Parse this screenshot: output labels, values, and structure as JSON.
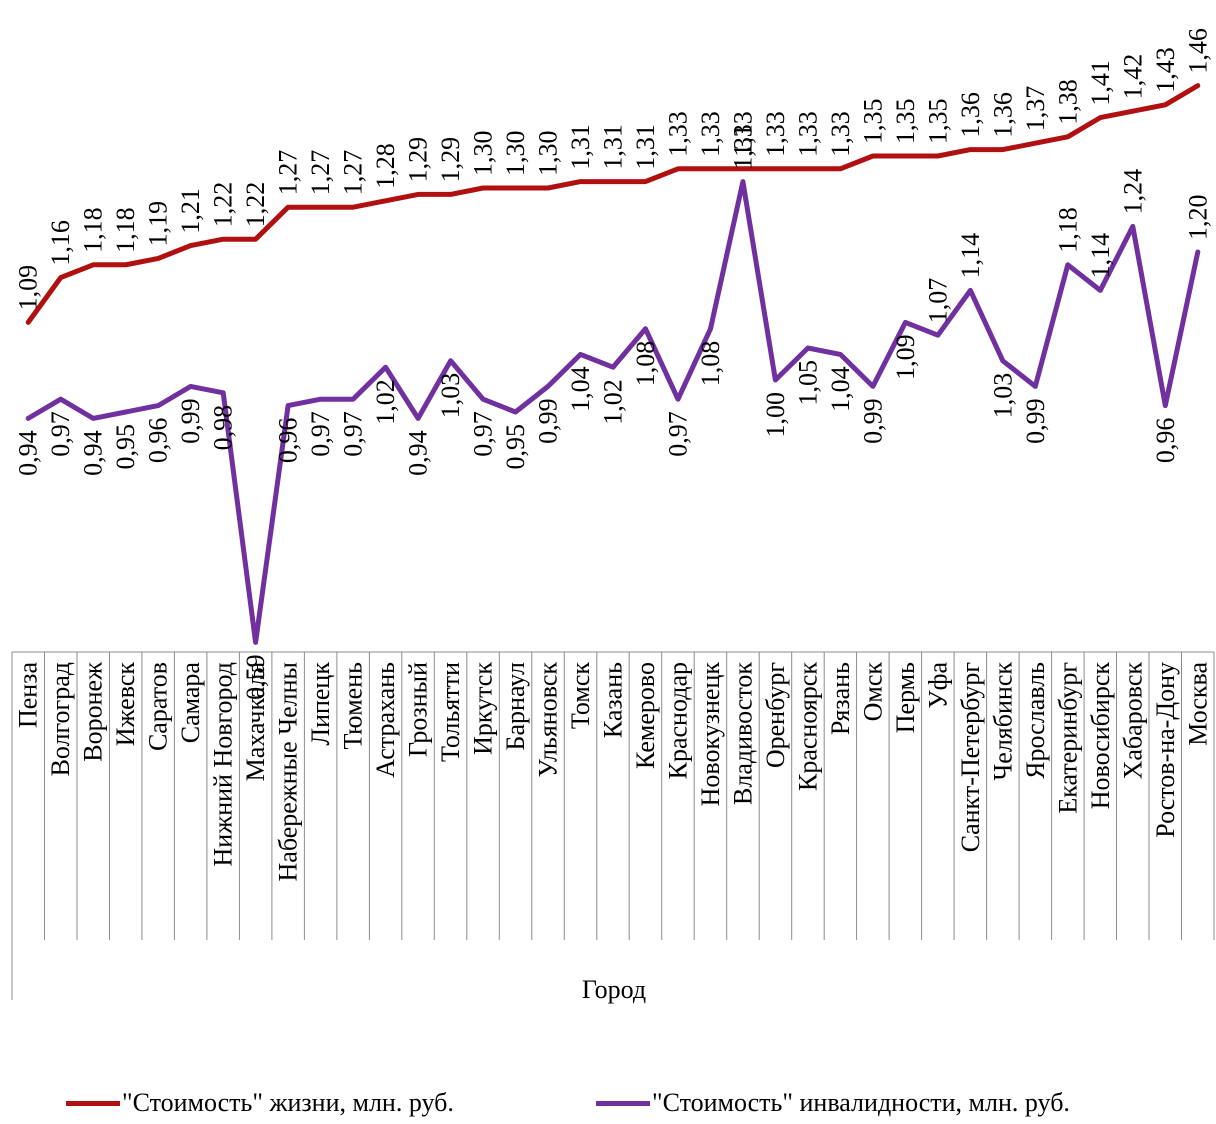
{
  "chart_data": {
    "type": "line",
    "title": "",
    "xlabel": "Город",
    "ylabel": "",
    "categories": [
      "Пенза",
      "Волгоград",
      "Воронеж",
      "Ижевск",
      "Саратов",
      "Самара",
      "Нижний Новгород",
      "Махачкала",
      "Набережные Челны",
      "Липецк",
      "Тюмень",
      "Астрахань",
      "Грозный",
      "Тольятти",
      "Иркутск",
      "Барнаул",
      "Ульяновск",
      "Томск",
      "Казань",
      "Кемерово",
      "Краснодар",
      "Новокузнецк",
      "Владивосток",
      "Оренбург",
      "Красноярск",
      "Рязань",
      "Омск",
      "Пермь",
      "Уфа",
      "Санкт-Петербург",
      "Челябинск",
      "Ярославль",
      "Екатеринбург",
      "Новосибирск",
      "Хабаровск",
      "Ростов-на-Дону",
      "Москва"
    ],
    "series": [
      {
        "name": "\"Стоимость\" жизни, млн. руб.",
        "color": "#b01010",
        "values": [
          1.09,
          1.16,
          1.18,
          1.18,
          1.19,
          1.21,
          1.22,
          1.22,
          1.27,
          1.27,
          1.27,
          1.28,
          1.29,
          1.29,
          1.3,
          1.3,
          1.3,
          1.31,
          1.31,
          1.31,
          1.33,
          1.33,
          1.33,
          1.33,
          1.33,
          1.33,
          1.35,
          1.35,
          1.35,
          1.36,
          1.36,
          1.37,
          1.38,
          1.41,
          1.42,
          1.43,
          1.46
        ],
        "labels": [
          "1,09",
          "1,16",
          "1,18",
          "1,18",
          "1,19",
          "1,21",
          "1,22",
          "1,22",
          "1,27",
          "1,27",
          "1,27",
          "1,28",
          "1,29",
          "1,29",
          "1,30",
          "1,30",
          "1,30",
          "1,31",
          "1,31",
          "1,31",
          "1,33",
          "1,33",
          "1,33",
          "1,33",
          "1,33",
          "1,33",
          "1,35",
          "1,35",
          "1,35",
          "1,36",
          "1,36",
          "1,37",
          "1,38",
          "1,41",
          "1,42",
          "1,43",
          "1,46"
        ]
      },
      {
        "name": "\"Стоимость\" инвалидности, млн. руб.",
        "color": "#7030a0",
        "values": [
          0.94,
          0.97,
          0.94,
          0.95,
          0.96,
          0.99,
          0.98,
          0.59,
          0.96,
          0.97,
          0.97,
          1.02,
          0.94,
          1.03,
          0.97,
          0.95,
          0.99,
          1.04,
          1.02,
          1.08,
          0.97,
          1.08,
          1.31,
          1.0,
          1.05,
          1.04,
          0.99,
          1.09,
          1.07,
          1.14,
          1.03,
          0.99,
          1.18,
          1.14,
          1.24,
          0.96,
          1.2
        ],
        "labels": [
          "0,94",
          "0,97",
          "0,94",
          "0,95",
          "0,96",
          "0,99",
          "0,98",
          "0,59",
          "0,96",
          "0,97",
          "0,97",
          "1,02",
          "0,94",
          "1,03",
          "0,97",
          "0,95",
          "0,99",
          "1,04",
          "1,02",
          "1,08",
          "0,97",
          "1,08",
          "1,31",
          "1,00",
          "1,05",
          "1,04",
          "0,99",
          "1,09",
          "1,07",
          "1,14",
          "1,03",
          "0,99",
          "1,18",
          "1,14",
          "1,24",
          "0,96",
          "1,20"
        ]
      }
    ],
    "legend_position": "bottom",
    "grid": false
  }
}
